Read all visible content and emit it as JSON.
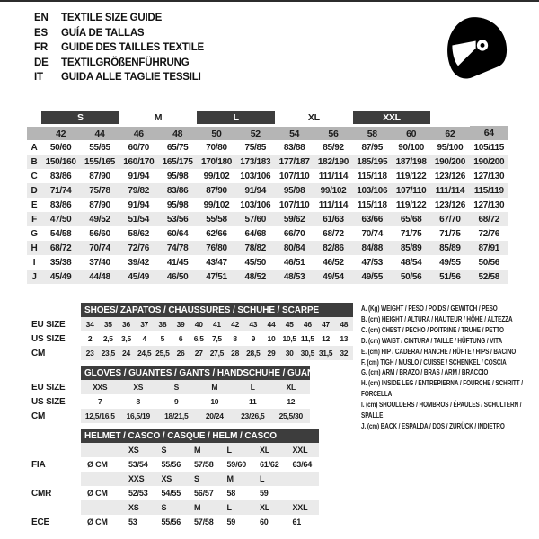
{
  "colors": {
    "dark_bar": "#3d3d3d",
    "size_header_bg": "#b5b5b5",
    "stripe_bg": "#eaeaea",
    "text": "#1c1c1c",
    "icon": "#000000"
  },
  "icons": {
    "helmet": "racing-helmet-icon"
  },
  "header": {
    "languages": [
      {
        "code": "EN",
        "title": "TEXTILE SIZE GUIDE"
      },
      {
        "code": "ES",
        "title": "GUÍA DE TALLAS"
      },
      {
        "code": "FR",
        "title": "GUIDE DES TAILLES TEXTILE"
      },
      {
        "code": "DE",
        "title": "TEXTILGRÖßENFÜHRUNG"
      },
      {
        "code": "IT",
        "title": "GUIDA ALLE TAGLIE TESSILI"
      }
    ]
  },
  "main_table": {
    "size_groups": [
      {
        "label": "",
        "span": 1,
        "dark": false
      },
      {
        "label": "S",
        "span": 2,
        "dark": true
      },
      {
        "label": "M",
        "span": 2,
        "dark": false
      },
      {
        "label": "L",
        "span": 2,
        "dark": true
      },
      {
        "label": "XL",
        "span": 2,
        "dark": false
      },
      {
        "label": "XXL",
        "span": 2,
        "dark": true
      },
      {
        "label": "",
        "span": 1,
        "dark": false
      }
    ],
    "sizes": [
      "42",
      "44",
      "46",
      "48",
      "50",
      "52",
      "54",
      "56",
      "58",
      "60",
      "62",
      "64"
    ],
    "rows": [
      {
        "label": "A",
        "values": [
          "50/60",
          "55/65",
          "60/70",
          "65/75",
          "70/80",
          "75/85",
          "83/88",
          "85/92",
          "87/95",
          "90/100",
          "95/100",
          "105/115"
        ]
      },
      {
        "label": "B",
        "values": [
          "150/160",
          "155/165",
          "160/170",
          "165/175",
          "170/180",
          "173/183",
          "177/187",
          "182/190",
          "185/195",
          "187/198",
          "190/200",
          "190/200"
        ]
      },
      {
        "label": "C",
        "values": [
          "83/86",
          "87/90",
          "91/94",
          "95/98",
          "99/102",
          "103/106",
          "107/110",
          "111/114",
          "115/118",
          "119/122",
          "123/126",
          "127/130"
        ]
      },
      {
        "label": "D",
        "values": [
          "71/74",
          "75/78",
          "79/82",
          "83/86",
          "87/90",
          "91/94",
          "95/98",
          "99/102",
          "103/106",
          "107/110",
          "111/114",
          "115/119"
        ]
      },
      {
        "label": "E",
        "values": [
          "83/86",
          "87/90",
          "91/94",
          "95/98",
          "99/102",
          "103/106",
          "107/110",
          "111/114",
          "115/118",
          "119/122",
          "123/126",
          "127/130"
        ]
      },
      {
        "label": "F",
        "values": [
          "47/50",
          "49/52",
          "51/54",
          "53/56",
          "55/58",
          "57/60",
          "59/62",
          "61/63",
          "63/66",
          "65/68",
          "67/70",
          "68/72"
        ]
      },
      {
        "label": "G",
        "values": [
          "54/58",
          "56/60",
          "58/62",
          "60/64",
          "62/66",
          "64/68",
          "66/70",
          "68/72",
          "70/74",
          "71/75",
          "71/75",
          "72/76"
        ]
      },
      {
        "label": "H",
        "values": [
          "68/72",
          "70/74",
          "72/76",
          "74/78",
          "76/80",
          "78/82",
          "80/84",
          "82/86",
          "84/88",
          "85/89",
          "85/89",
          "87/91"
        ]
      },
      {
        "label": "I",
        "values": [
          "35/38",
          "37/40",
          "39/42",
          "41/45",
          "43/47",
          "45/50",
          "46/51",
          "46/52",
          "47/53",
          "48/54",
          "49/55",
          "50/56"
        ]
      },
      {
        "label": "J",
        "values": [
          "45/49",
          "44/48",
          "45/49",
          "46/50",
          "47/51",
          "48/52",
          "48/53",
          "49/54",
          "49/55",
          "50/56",
          "51/56",
          "52/58"
        ]
      }
    ]
  },
  "shoes_table": {
    "title": "SHOES/ ZAPATOS / CHAUSSURES / SCHUHE / SCARPE",
    "rows": [
      {
        "label": "EU SIZE",
        "shaded": true,
        "values": [
          "34",
          "35",
          "36",
          "37",
          "38",
          "39",
          "40",
          "41",
          "42",
          "43",
          "44",
          "45",
          "46",
          "47",
          "48"
        ]
      },
      {
        "label": "US SIZE",
        "shaded": false,
        "values": [
          "2",
          "2,5",
          "3,5",
          "4",
          "5",
          "6",
          "6,5",
          "7,5",
          "8",
          "9",
          "10",
          "10,5",
          "11,5",
          "12",
          "13"
        ]
      },
      {
        "label": "CM",
        "shaded": true,
        "values": [
          "23",
          "23,5",
          "24",
          "24,5",
          "25,5",
          "26",
          "27",
          "27,5",
          "28",
          "28,5",
          "29",
          "30",
          "30,5",
          "31,5",
          "32"
        ]
      }
    ]
  },
  "gloves_table": {
    "title": "GLOVES / GUANTES / GANTS / HANDSCHUHE / GUANTI",
    "rows": [
      {
        "label": "EU SIZE",
        "shaded": true,
        "values": [
          "XXS",
          "XS",
          "S",
          "M",
          "L",
          "XL"
        ]
      },
      {
        "label": "US SIZE",
        "shaded": false,
        "values": [
          "7",
          "8",
          "9",
          "10",
          "11",
          "12"
        ]
      },
      {
        "label": "CM",
        "shaded": true,
        "values": [
          "12,5/16,5",
          "16,5/19",
          "18/21,5",
          "20/24",
          "23/26,5",
          "25,5/30"
        ]
      }
    ]
  },
  "helmet_table": {
    "title": "HELMET / CASCO / CASQUE / HELM / CASCO",
    "groups": [
      {
        "label": "FIA",
        "unit": "Ø CM",
        "sizes": [
          "XS",
          "S",
          "M",
          "L",
          "XL",
          "XXL"
        ],
        "values": [
          "53/54",
          "55/56",
          "57/58",
          "59/60",
          "61/62",
          "63/64"
        ]
      },
      {
        "label": "CMR",
        "unit": "Ø CM",
        "sizes": [
          "XXS",
          "XS",
          "S",
          "M",
          "L",
          ""
        ],
        "values": [
          "52/53",
          "54/55",
          "56/57",
          "58",
          "59",
          ""
        ]
      },
      {
        "label": "ECE",
        "unit": "Ø CM",
        "sizes": [
          "XS",
          "S",
          "M",
          "L",
          "XL",
          "XXL"
        ],
        "values": [
          "53",
          "55/56",
          "57/58",
          "59",
          "60",
          "61"
        ]
      }
    ]
  },
  "legend": {
    "items": [
      "A. (Kg) WEIGHT / PESO / POIDS / GEWITCH / PESO",
      "B. (cm) HEIGHT / ALTURA / HAUTEUR / HÖHE / ALTEZZA",
      "C. (cm) CHEST / PECHO / POITRINE / TRUHE / PETTO",
      "D. (cm) WAIST / CINTURA / TAILLE / HÜFTUNG / VITA",
      "E. (cm) HIP / CADERA / HANCHE / HÜFTE / HIPS / BACINO",
      "F. (cm) TIGH / MUSLO / CUISSE / SCHENKEL / COSCIA",
      "G. (cm) ARM / BRAZO / BRAS / ARM / BRACCIO",
      "H. (cm) INSIDE LEG / ENTREPIERNA / FOURCHE / SCHRITT / FORCELLA",
      "I. (cm) SHOULDERS / HOMBROS / ÉPAULES / SCHULTERN / SPALLE",
      "J. (cm) BACK / ESPALDA / DOS / ZURÜCK / INDIETRO"
    ]
  }
}
